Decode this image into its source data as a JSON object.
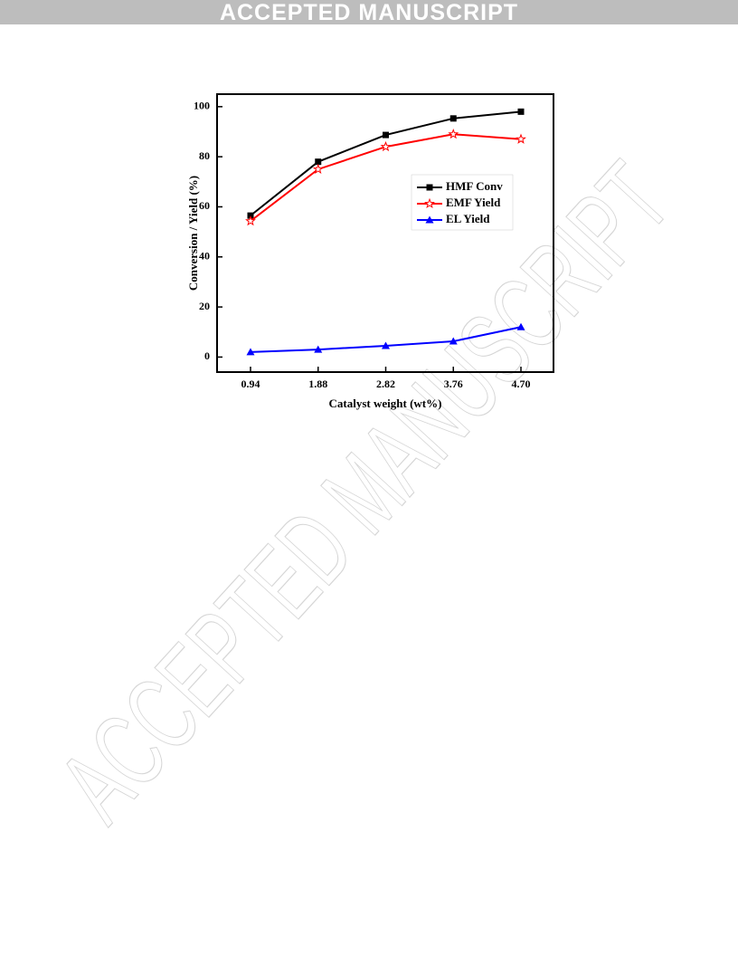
{
  "header": "ACCEPTED MANUSCRIPT",
  "watermark": "ACCEPTED MANUSCRIPT",
  "chart_data": {
    "type": "line",
    "x_label": "Catalyst weight (wt%)",
    "y_label": "Conversion / Yield (%)",
    "categories": [
      "0.94",
      "1.88",
      "2.82",
      "3.76",
      "4.70"
    ],
    "series": [
      {
        "name": "HMF Conv",
        "color": "#000000",
        "marker": "square",
        "values": [
          56.5,
          78,
          88.7,
          95.3,
          98
        ]
      },
      {
        "name": "EMF Yield",
        "color": "#ff0000",
        "marker": "star",
        "values": [
          54.3,
          75,
          84,
          89,
          87
        ]
      },
      {
        "name": "EL Yield",
        "color": "#0000ff",
        "marker": "triangle",
        "values": [
          2,
          3,
          4.5,
          6.3,
          12
        ]
      }
    ],
    "ylim": [
      -6,
      105
    ],
    "yticks": [
      0,
      20,
      40,
      60,
      80,
      100
    ],
    "legend": "right"
  }
}
